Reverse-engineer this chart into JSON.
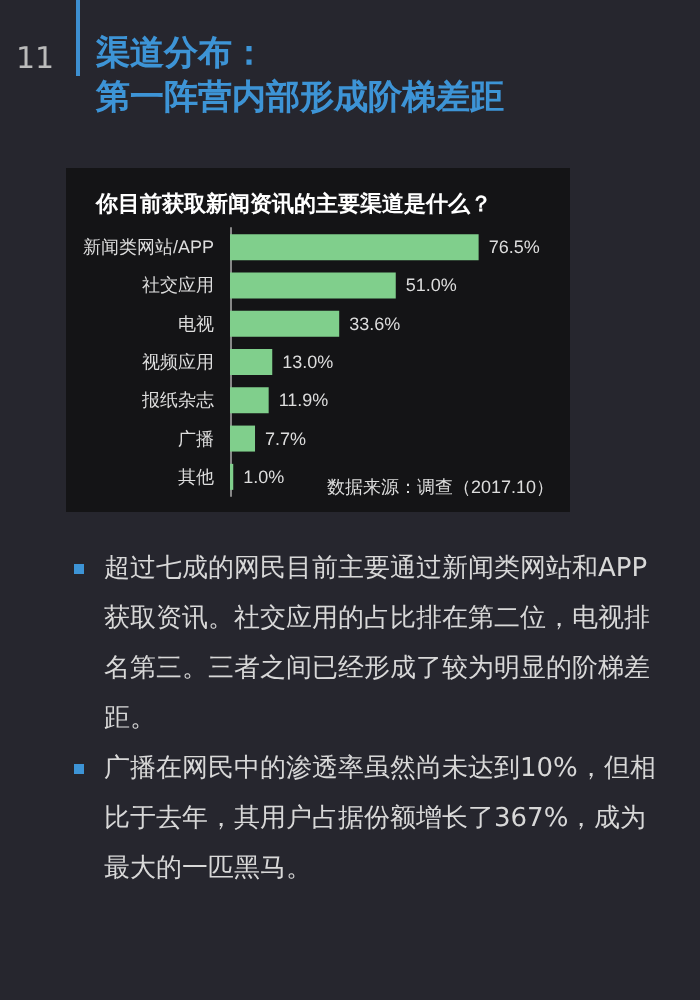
{
  "chart_data": {
    "type": "bar",
    "orientation": "horizontal",
    "title": "渠道分布：",
    "subtitle": "第一阵营内部形成阶梯差距",
    "categories": [
      "新闻类网站/APP",
      "社交应用",
      "电视",
      "视频应用",
      "报纸杂志",
      "广播",
      "其他"
    ],
    "values": [
      76.5,
      51.0,
      33.6,
      13.0,
      11.9,
      7.7,
      1.0
    ],
    "value_labels": [
      "76.5%",
      "51.0%",
      "33.6%",
      "13.0%",
      "11.9%",
      "7.7%",
      "1.0%"
    ],
    "color": "#80cf8c",
    "grid": false,
    "annotations": [
      "11",
      "超过七成的网民目前主要通过新闻类网站和APP获取资讯。社交应用的占比排在第二位，电视排名第三。三者之间已经形成了较为明显的阶梯差距。",
      "广播在网民中的渗透率虽然尚未达到10%，但相比于去年，其用户占据份额增长了367%，成为最大的一匹黑马。",
      "数据来源：调查（2017.10）",
      "你目前获取新闻资讯的主要渠道是什么？"
    ]
  }
}
